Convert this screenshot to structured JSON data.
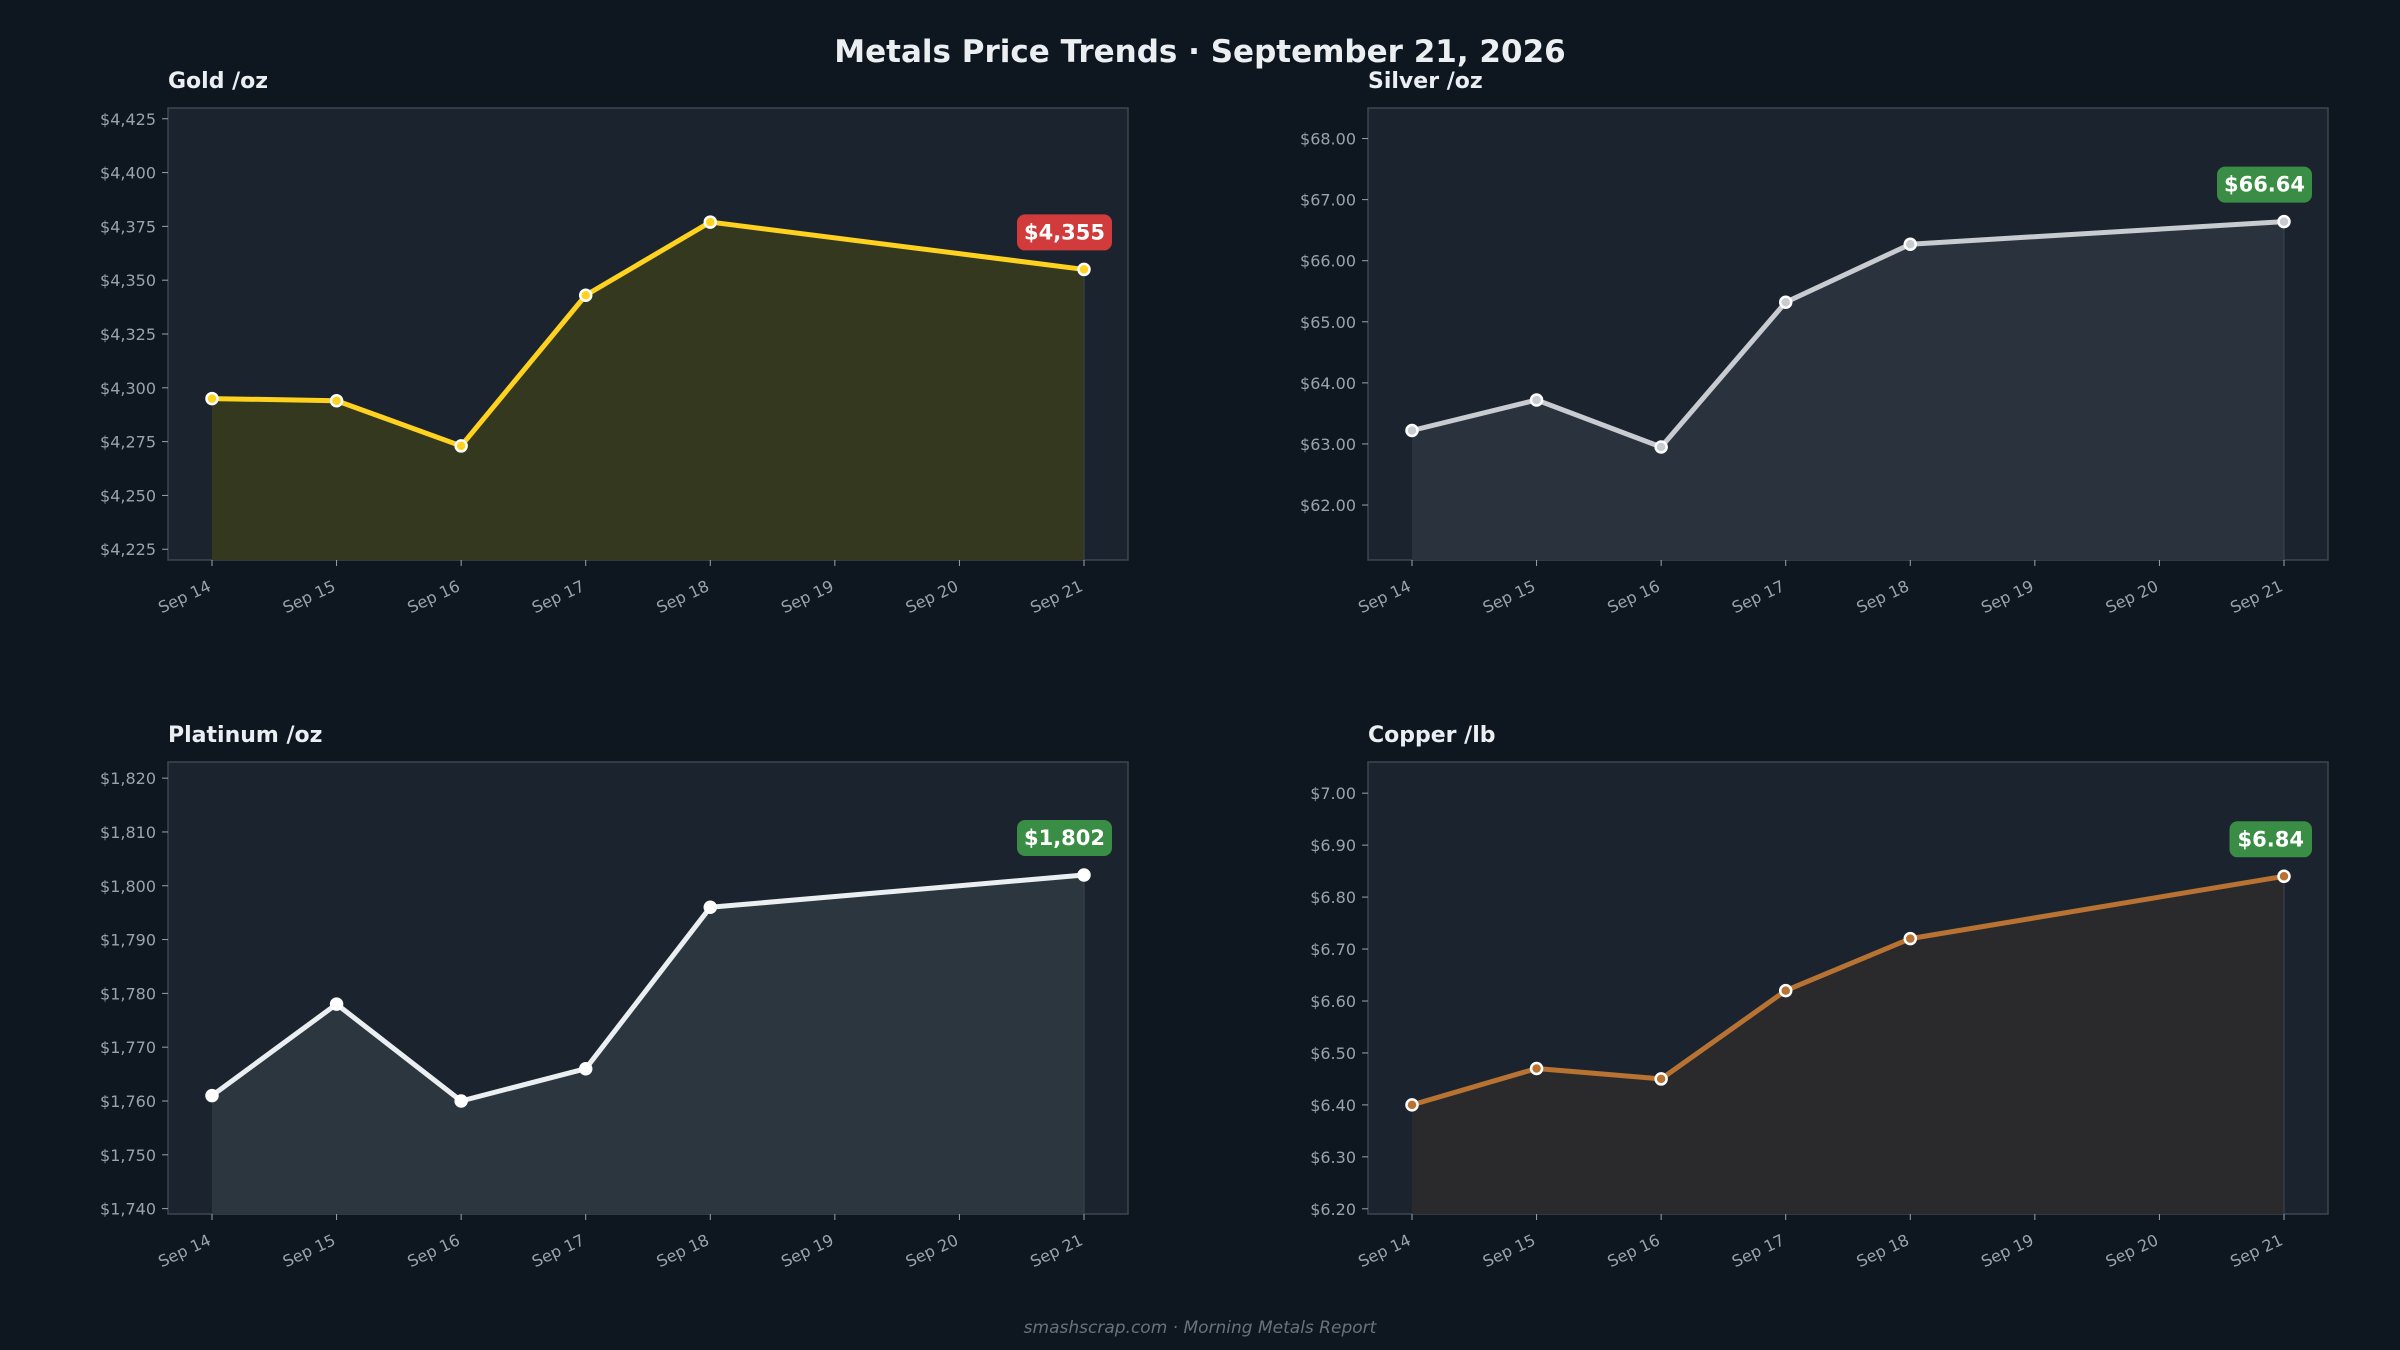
{
  "page": {
    "title": "Metals Price Trends  ·  September 21, 2026",
    "footer": "smashscrap.com  ·  Morning Metals Report",
    "background": "#0e1620"
  },
  "chart_data": [
    {
      "type": "line",
      "title": "Gold  /oz",
      "x": [
        "Sep 14",
        "Sep 15",
        "Sep 16",
        "Sep 17",
        "Sep 18",
        "Sep 19",
        "Sep 20",
        "Sep 21"
      ],
      "points": [
        {
          "x": "Sep 14",
          "y": 4295
        },
        {
          "x": "Sep 15",
          "y": 4294
        },
        {
          "x": "Sep 16",
          "y": 4273
        },
        {
          "x": "Sep 17",
          "y": 4343
        },
        {
          "x": "Sep 18",
          "y": 4377
        },
        {
          "x": "Sep 21",
          "y": 4355
        }
      ],
      "ylim": [
        4220,
        4430
      ],
      "yticks": [
        4225,
        4250,
        4275,
        4300,
        4325,
        4350,
        4375,
        4400,
        4425
      ],
      "tick_format": "comma0",
      "last_label": "$4,355",
      "badge_color": "#d13b3b",
      "line_color": "#ffd21f",
      "fill_color": "#34381f",
      "marker_fill": "#ffd21f",
      "marker_stroke": "#ffffff",
      "grid": false
    },
    {
      "type": "line",
      "title": "Silver  /oz",
      "x": [
        "Sep 14",
        "Sep 15",
        "Sep 16",
        "Sep 17",
        "Sep 18",
        "Sep 19",
        "Sep 20",
        "Sep 21"
      ],
      "points": [
        {
          "x": "Sep 14",
          "y": 63.22
        },
        {
          "x": "Sep 15",
          "y": 63.72
        },
        {
          "x": "Sep 16",
          "y": 62.95
        },
        {
          "x": "Sep 17",
          "y": 65.32
        },
        {
          "x": "Sep 18",
          "y": 66.27
        },
        {
          "x": "Sep 21",
          "y": 66.64
        }
      ],
      "ylim": [
        61.1,
        68.5
      ],
      "yticks": [
        62,
        63,
        64,
        65,
        66,
        67,
        68
      ],
      "tick_format": "fixed2",
      "last_label": "$66.64",
      "badge_color": "#3a8d45",
      "line_color": "#c8cbcf",
      "fill_color": "#2a333d",
      "marker_fill": "#c8cbcf",
      "marker_stroke": "#ffffff",
      "grid": false
    },
    {
      "type": "line",
      "title": "Platinum  /oz",
      "x": [
        "Sep 14",
        "Sep 15",
        "Sep 16",
        "Sep 17",
        "Sep 18",
        "Sep 19",
        "Sep 20",
        "Sep 21"
      ],
      "points": [
        {
          "x": "Sep 14",
          "y": 1761
        },
        {
          "x": "Sep 15",
          "y": 1778
        },
        {
          "x": "Sep 16",
          "y": 1760
        },
        {
          "x": "Sep 17",
          "y": 1766
        },
        {
          "x": "Sep 18",
          "y": 1796
        },
        {
          "x": "Sep 21",
          "y": 1802
        }
      ],
      "ylim": [
        1739,
        1823
      ],
      "yticks": [
        1740,
        1750,
        1760,
        1770,
        1780,
        1790,
        1800,
        1810,
        1820
      ],
      "tick_format": "comma0",
      "last_label": "$1,802",
      "badge_color": "#3a8d45",
      "line_color": "#eceff1",
      "fill_color": "#2c363f",
      "marker_fill": "#ffffff",
      "marker_stroke": "#ffffff",
      "grid": false
    },
    {
      "type": "line",
      "title": "Copper  /lb",
      "x": [
        "Sep 14",
        "Sep 15",
        "Sep 16",
        "Sep 17",
        "Sep 18",
        "Sep 19",
        "Sep 20",
        "Sep 21"
      ],
      "points": [
        {
          "x": "Sep 14",
          "y": 6.4
        },
        {
          "x": "Sep 15",
          "y": 6.47
        },
        {
          "x": "Sep 16",
          "y": 6.45
        },
        {
          "x": "Sep 17",
          "y": 6.62
        },
        {
          "x": "Sep 18",
          "y": 6.72
        },
        {
          "x": "Sep 21",
          "y": 6.84
        }
      ],
      "ylim": [
        6.19,
        7.06
      ],
      "yticks": [
        6.2,
        6.3,
        6.4,
        6.5,
        6.6,
        6.7,
        6.8,
        6.9,
        7.0
      ],
      "tick_format": "fixed2",
      "last_label": "$6.84",
      "badge_color": "#3a8d45",
      "line_color": "#b87333",
      "fill_color": "#2a2a2c",
      "marker_fill": "#b87333",
      "marker_stroke": "#ffffff",
      "grid": false
    }
  ]
}
